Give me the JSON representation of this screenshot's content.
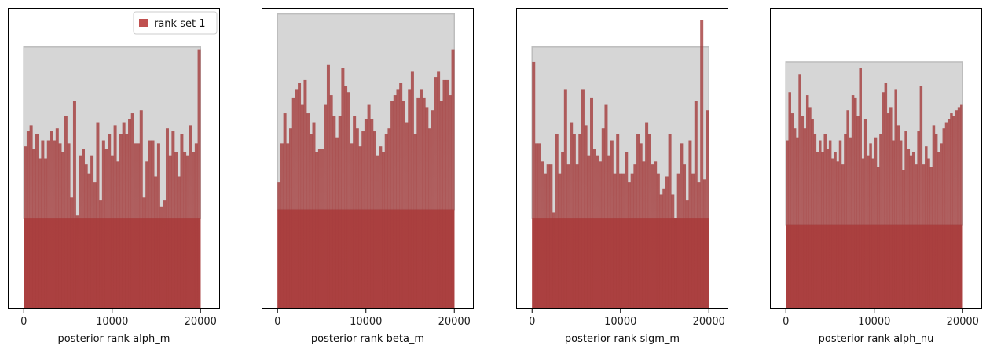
{
  "chart_data": [
    {
      "type": "bar",
      "xlabel": "posterior rank alph_m",
      "xticks": [
        0,
        10000,
        20000
      ],
      "tick_labels": [
        "0",
        "10000",
        "20000"
      ],
      "xlim": [
        -1800,
        22200
      ],
      "ylim": [
        0,
        1
      ],
      "band": {
        "lower": 0.3,
        "upper": 0.87
      },
      "x_range": [
        0,
        20000
      ],
      "legend": {
        "label": "rank set 1",
        "position": "top-right"
      },
      "values": [
        0.54,
        0.59,
        0.61,
        0.53,
        0.58,
        0.5,
        0.56,
        0.5,
        0.56,
        0.59,
        0.56,
        0.6,
        0.55,
        0.52,
        0.64,
        0.55,
        0.37,
        0.69,
        0.31,
        0.51,
        0.53,
        0.48,
        0.45,
        0.51,
        0.42,
        0.62,
        0.36,
        0.56,
        0.53,
        0.58,
        0.51,
        0.61,
        0.49,
        0.58,
        0.62,
        0.58,
        0.63,
        0.65,
        0.55,
        0.55,
        0.66,
        0.37,
        0.49,
        0.56,
        0.56,
        0.44,
        0.55,
        0.34,
        0.36,
        0.6,
        0.51,
        0.59,
        0.52,
        0.44,
        0.58,
        0.52,
        0.51,
        0.61,
        0.52,
        0.55,
        0.86
      ]
    },
    {
      "type": "bar",
      "xlabel": "posterior rank beta_m",
      "xticks": [
        0,
        10000,
        20000
      ],
      "tick_labels": [
        "0",
        "10000",
        "20000"
      ],
      "xlim": [
        -1800,
        22200
      ],
      "ylim": [
        0,
        1
      ],
      "band": {
        "lower": 0.33,
        "upper": 0.98
      },
      "x_range": [
        0,
        20000
      ],
      "legend": null,
      "values": [
        0.42,
        0.55,
        0.65,
        0.55,
        0.6,
        0.7,
        0.73,
        0.75,
        0.68,
        0.76,
        0.65,
        0.58,
        0.62,
        0.52,
        0.53,
        0.53,
        0.68,
        0.81,
        0.71,
        0.64,
        0.57,
        0.64,
        0.8,
        0.74,
        0.72,
        0.55,
        0.64,
        0.6,
        0.54,
        0.59,
        0.63,
        0.68,
        0.63,
        0.59,
        0.51,
        0.54,
        0.52,
        0.58,
        0.6,
        0.69,
        0.71,
        0.73,
        0.75,
        0.69,
        0.62,
        0.73,
        0.79,
        0.58,
        0.7,
        0.73,
        0.7,
        0.67,
        0.6,
        0.66,
        0.77,
        0.79,
        0.69,
        0.76,
        0.76,
        0.71,
        0.86
      ]
    },
    {
      "type": "bar",
      "xlabel": "posterior rank sigm_m",
      "xticks": [
        0,
        10000,
        20000
      ],
      "tick_labels": [
        "0",
        "10000",
        "20000"
      ],
      "xlim": [
        -1800,
        22200
      ],
      "ylim": [
        0,
        1
      ],
      "band": {
        "lower": 0.3,
        "upper": 0.87
      },
      "x_range": [
        0,
        20000
      ],
      "legend": null,
      "values": [
        0.82,
        0.55,
        0.55,
        0.49,
        0.45,
        0.48,
        0.48,
        0.32,
        0.58,
        0.45,
        0.52,
        0.73,
        0.48,
        0.62,
        0.58,
        0.48,
        0.58,
        0.73,
        0.61,
        0.51,
        0.7,
        0.53,
        0.51,
        0.49,
        0.6,
        0.68,
        0.51,
        0.56,
        0.45,
        0.58,
        0.45,
        0.45,
        0.52,
        0.42,
        0.45,
        0.48,
        0.58,
        0.55,
        0.49,
        0.62,
        0.58,
        0.48,
        0.49,
        0.45,
        0.38,
        0.4,
        0.44,
        0.58,
        0.38,
        0.3,
        0.45,
        0.55,
        0.48,
        0.36,
        0.56,
        0.45,
        0.69,
        0.42,
        0.96,
        0.43,
        0.66
      ]
    },
    {
      "type": "bar",
      "xlabel": "posterior rank alph_nu",
      "xticks": [
        0,
        10000,
        20000
      ],
      "tick_labels": [
        "0",
        "10000",
        "20000"
      ],
      "xlim": [
        -1800,
        22200
      ],
      "ylim": [
        0,
        1
      ],
      "band": {
        "lower": 0.28,
        "upper": 0.82
      },
      "x_range": [
        0,
        20000
      ],
      "legend": null,
      "values": [
        0.56,
        0.72,
        0.65,
        0.6,
        0.57,
        0.78,
        0.64,
        0.6,
        0.71,
        0.67,
        0.63,
        0.58,
        0.52,
        0.56,
        0.52,
        0.58,
        0.53,
        0.56,
        0.5,
        0.52,
        0.49,
        0.56,
        0.48,
        0.58,
        0.66,
        0.57,
        0.71,
        0.7,
        0.64,
        0.8,
        0.5,
        0.63,
        0.51,
        0.55,
        0.5,
        0.57,
        0.47,
        0.58,
        0.72,
        0.75,
        0.65,
        0.67,
        0.56,
        0.73,
        0.61,
        0.56,
        0.46,
        0.59,
        0.53,
        0.51,
        0.52,
        0.48,
        0.59,
        0.74,
        0.48,
        0.54,
        0.5,
        0.47,
        0.61,
        0.58,
        0.52,
        0.55,
        0.6,
        0.62,
        0.63,
        0.65,
        0.64,
        0.66,
        0.67,
        0.68
      ]
    }
  ],
  "colors": {
    "bar": "#a33a3a",
    "bar_bottom": "#c0504f",
    "band": "#d6d6d6",
    "band_edge": "#bdbdbd",
    "legend_patch": "#c0504f"
  }
}
